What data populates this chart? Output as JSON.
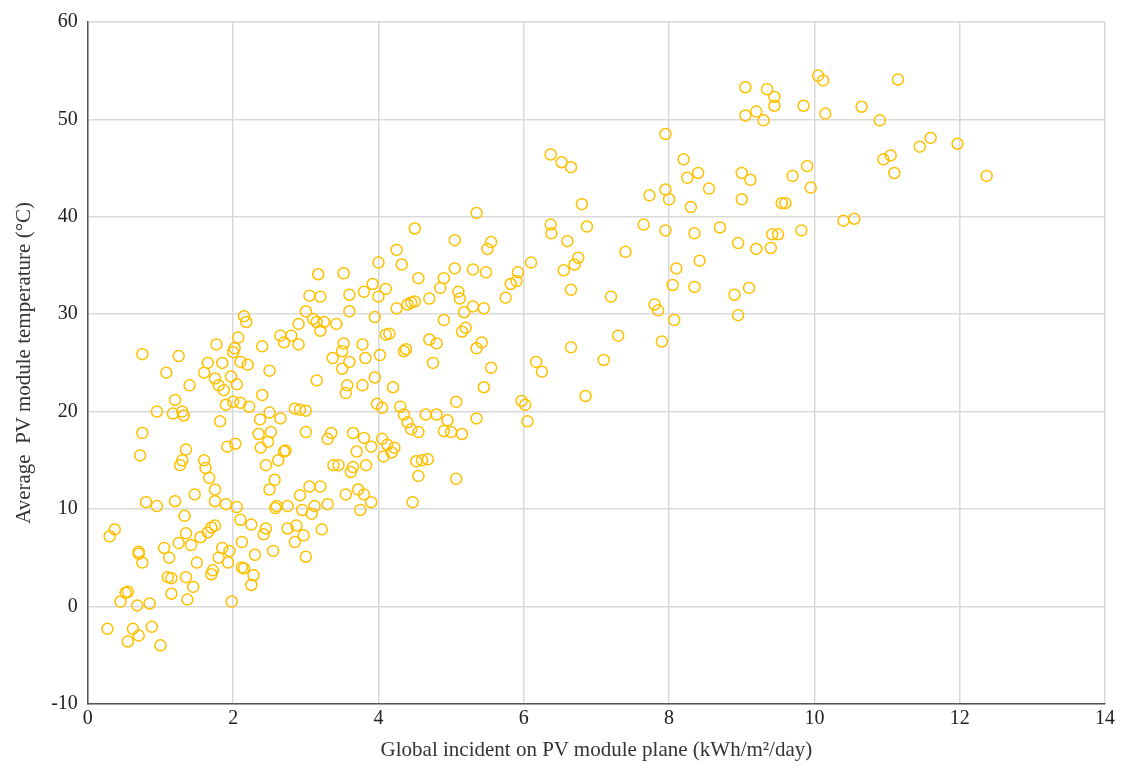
{
  "chart_data": {
    "type": "scatter",
    "xlabel": "Global incident on PV module plane (kWh/m²/day)",
    "ylabel": "Average  PV module temperature (°C)",
    "xlim": [
      0,
      14
    ],
    "xticks": [
      0,
      2,
      4,
      6,
      8,
      10,
      12,
      14
    ],
    "ylim": [
      -10,
      60
    ],
    "yticks": [
      -10,
      0,
      10,
      20,
      30,
      40,
      50,
      60
    ],
    "grid": true,
    "legend": false,
    "marker": "circle",
    "series": [
      {
        "color": "#ffc000",
        "x": [
          0.27,
          0.3,
          0.37,
          0.45,
          0.52,
          0.55,
          0.55,
          0.62,
          0.68,
          0.7,
          0.7,
          0.7,
          0.72,
          0.75,
          0.75,
          0.75,
          0.8,
          0.85,
          0.88,
          0.95,
          0.95,
          1.0,
          1.05,
          1.08,
          1.1,
          1.12,
          1.15,
          1.15,
          1.17,
          1.2,
          1.2,
          1.25,
          1.25,
          1.27,
          1.3,
          1.3,
          1.32,
          1.33,
          1.35,
          1.35,
          1.35,
          1.37,
          1.4,
          1.42,
          1.45,
          1.47,
          1.5,
          1.55,
          1.6,
          1.6,
          1.62,
          1.65,
          1.65,
          1.67,
          1.7,
          1.7,
          1.72,
          1.75,
          1.75,
          1.75,
          1.75,
          1.77,
          1.8,
          1.8,
          1.82,
          1.85,
          1.85,
          1.87,
          1.9,
          1.9,
          1.92,
          1.93,
          1.95,
          1.97,
          1.98,
          2.0,
          2.0,
          2.02,
          2.03,
          2.05,
          2.05,
          2.07,
          2.1,
          2.1,
          2.1,
          2.12,
          2.12,
          2.15,
          2.15,
          2.18,
          2.2,
          2.22,
          2.25,
          2.25,
          2.28,
          2.3,
          2.35,
          2.37,
          2.38,
          2.4,
          2.4,
          2.42,
          2.45,
          2.45,
          2.48,
          2.5,
          2.5,
          2.5,
          2.52,
          2.55,
          2.57,
          2.58,
          2.6,
          2.62,
          2.65,
          2.65,
          2.7,
          2.7,
          2.72,
          2.75,
          2.75,
          2.8,
          2.85,
          2.85,
          2.87,
          2.9,
          2.9,
          2.92,
          2.92,
          2.95,
          2.97,
          3.0,
          3.0,
          3.0,
          3.0,
          3.05,
          3.05,
          3.08,
          3.1,
          3.12,
          3.15,
          3.15,
          3.17,
          3.2,
          3.2,
          3.2,
          3.22,
          3.25,
          3.3,
          3.3,
          3.35,
          3.37,
          3.38,
          3.42,
          3.45,
          3.5,
          3.5,
          3.52,
          3.52,
          3.55,
          3.55,
          3.57,
          3.6,
          3.6,
          3.6,
          3.62,
          3.65,
          3.65,
          3.7,
          3.72,
          3.75,
          3.78,
          3.78,
          3.8,
          3.8,
          3.8,
          3.82,
          3.83,
          3.9,
          3.9,
          3.92,
          3.95,
          3.95,
          3.98,
          4.0,
          4.0,
          4.02,
          4.05,
          4.05,
          4.07,
          4.1,
          4.1,
          4.12,
          4.15,
          4.18,
          4.2,
          4.22,
          4.25,
          4.25,
          4.3,
          4.32,
          4.35,
          4.35,
          4.38,
          4.4,
          4.4,
          4.45,
          4.45,
          4.47,
          4.5,
          4.5,
          4.52,
          4.55,
          4.55,
          4.55,
          4.6,
          4.65,
          4.68,
          4.7,
          4.7,
          4.75,
          4.8,
          4.8,
          4.85,
          4.9,
          4.9,
          4.9,
          4.95,
          5.0,
          5.05,
          5.05,
          5.07,
          5.07,
          5.1,
          5.12,
          5.15,
          5.15,
          5.18,
          5.2,
          5.3,
          5.3,
          5.35,
          5.35,
          5.35,
          5.42,
          5.45,
          5.45,
          5.48,
          5.5,
          5.55,
          5.55,
          5.75,
          5.82,
          5.9,
          5.92,
          5.97,
          6.02,
          6.05,
          6.1,
          6.17,
          6.25,
          6.37,
          6.37,
          6.38,
          6.52,
          6.55,
          6.6,
          6.65,
          6.65,
          6.65,
          6.7,
          6.75,
          6.8,
          6.85,
          6.87,
          7.1,
          7.2,
          7.3,
          7.4,
          7.65,
          7.73,
          7.8,
          7.85,
          7.9,
          7.95,
          7.95,
          7.95,
          8.0,
          8.05,
          8.07,
          8.1,
          8.2,
          8.25,
          8.3,
          8.35,
          8.35,
          8.4,
          8.42,
          8.55,
          8.7,
          8.9,
          8.95,
          8.95,
          9.0,
          9.0,
          9.05,
          9.05,
          9.1,
          9.12,
          9.2,
          9.2,
          9.3,
          9.35,
          9.4,
          9.42,
          9.45,
          9.45,
          9.5,
          9.55,
          9.6,
          9.7,
          9.82,
          9.85,
          9.9,
          9.95,
          10.05,
          10.12,
          10.15,
          10.4,
          10.55,
          10.65,
          10.9,
          10.95,
          11.05,
          11.1,
          11.15,
          11.45,
          11.6,
          11.97,
          12.37
        ],
        "values": [
          -2.3,
          7.2,
          7.9,
          0.5,
          1.4,
          1.5,
          -3.6,
          -2.3,
          0.1,
          5.6,
          5.4,
          -3,
          15.5,
          17.8,
          4.5,
          25.9,
          10.7,
          0.3,
          -2.1,
          20,
          10.3,
          -4,
          6,
          24,
          3,
          5,
          1.3,
          2.9,
          19.8,
          21.2,
          10.8,
          25.7,
          6.5,
          14.5,
          15,
          20,
          19.6,
          9.3,
          7.5,
          16.1,
          3,
          0.7,
          22.7,
          6.3,
          2,
          11.5,
          4.5,
          7.1,
          24,
          15,
          14.2,
          7.6,
          25,
          13.2,
          8.1,
          3.3,
          3.7,
          23.4,
          12,
          10.8,
          8.3,
          26.9,
          22.7,
          5,
          19,
          6,
          25,
          22.2,
          20.7,
          10.5,
          16.4,
          4.5,
          5.7,
          23.6,
          0.5,
          21,
          26.1,
          26.5,
          16.7,
          22.8,
          10.2,
          27.6,
          25.1,
          20.9,
          8.9,
          6.6,
          4,
          29.8,
          3.9,
          29.2,
          24.8,
          20.5,
          8.4,
          2.2,
          3.2,
          5.3,
          17.7,
          19.2,
          16.3,
          26.7,
          21.7,
          7.4,
          8,
          14.5,
          16.9,
          24.2,
          19.9,
          12,
          17.9,
          5.7,
          13,
          10.1,
          10.3,
          15,
          27.8,
          19.3,
          15.9,
          27.1,
          16,
          10.3,
          8,
          27.8,
          20.3,
          6.6,
          8.3,
          29,
          26.9,
          20.2,
          11.4,
          9.9,
          7.3,
          17.9,
          20.1,
          5.1,
          30.3,
          31.9,
          12.3,
          9.5,
          29.5,
          10.3,
          29.2,
          23.2,
          34.1,
          31.8,
          28.3,
          12.3,
          7.9,
          29.2,
          17.2,
          10.5,
          17.8,
          25.5,
          14.5,
          29,
          14.5,
          26.2,
          24.4,
          34.2,
          27,
          21.9,
          11.5,
          22.7,
          32,
          25.1,
          30.3,
          13.8,
          14.3,
          17.8,
          15.9,
          12,
          9.9,
          26.9,
          22.7,
          32.3,
          17.3,
          11.5,
          25.5,
          14.5,
          16.4,
          10.7,
          33.1,
          29.7,
          23.5,
          20.8,
          35.3,
          31.8,
          25.8,
          17.2,
          20.4,
          15.4,
          32.6,
          27.9,
          16.6,
          28,
          15.8,
          22.5,
          16.3,
          36.6,
          30.6,
          20.5,
          35.1,
          26.2,
          19.7,
          26.4,
          31,
          18.9,
          31.2,
          18.2,
          10.7,
          38.8,
          31.3,
          14.9,
          17.9,
          13.4,
          33.7,
          15,
          19.7,
          15.1,
          31.6,
          27.4,
          25,
          27,
          19.7,
          32.7,
          33.7,
          29.4,
          18,
          19.1,
          17.9,
          37.6,
          34.7,
          21,
          13.1,
          32.3,
          31.6,
          28.2,
          17.7,
          30.2,
          28.6,
          34.6,
          30.8,
          40.4,
          26.5,
          19.3,
          27.1,
          30.6,
          22.5,
          34.3,
          36.7,
          37.4,
          24.5,
          31.7,
          33.1,
          33.4,
          34.3,
          21.1,
          20.7,
          19,
          35.3,
          25.1,
          24.1,
          46.4,
          39.2,
          38.3,
          45.6,
          34.5,
          37.5,
          32.5,
          26.6,
          45.1,
          35.1,
          35.8,
          41.3,
          21.6,
          39,
          25.3,
          31.8,
          27.8,
          36.4,
          39.2,
          42.2,
          31,
          30.4,
          27.2,
          48.5,
          42.8,
          38.6,
          41.8,
          33,
          29.4,
          34.7,
          45.9,
          44,
          41,
          38.3,
          32.8,
          44.5,
          35.5,
          42.9,
          38.9,
          32,
          37.3,
          29.9,
          44.5,
          41.8,
          53.3,
          50.4,
          32.7,
          43.8,
          50.8,
          36.7,
          49.9,
          53.1,
          36.8,
          38.2,
          52.3,
          51.4,
          38.2,
          41.4,
          41.4,
          44.2,
          38.6,
          51.4,
          45.2,
          43,
          54.5,
          54,
          50.6,
          39.6,
          39.8,
          51.3,
          49.9,
          45.9,
          46.3,
          44.5,
          54.1,
          47.2,
          48.1,
          47.5,
          44.2
        ]
      }
    ]
  }
}
